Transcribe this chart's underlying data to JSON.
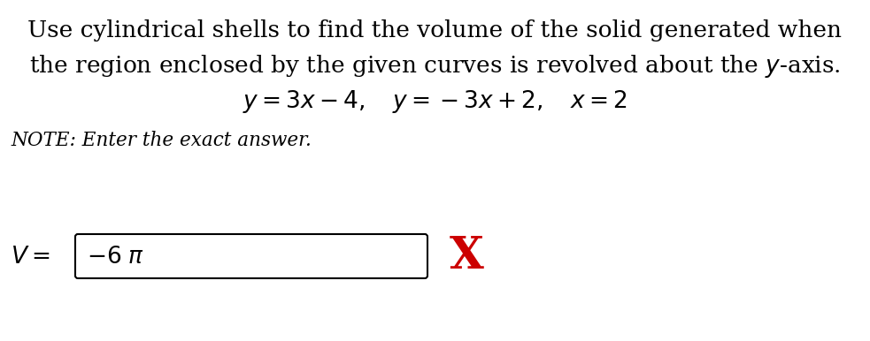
{
  "bg_color": "#ffffff",
  "line1": "Use cylindrical shells to find the volume of the solid generated when",
  "line2_pre": "the region enclosed by the given curves is revolved about the ",
  "line2_post": "-axis.",
  "line3": "$y = 3x - 4, \\;\\; y = -3x + 2, \\;\\; x = 2$",
  "note": "NOTE: Enter the exact answer.",
  "x_mark_color": "#cc0000",
  "font_size_main": 19,
  "font_size_note": 15.5,
  "font_size_answer": 19,
  "font_size_xmark": 36
}
